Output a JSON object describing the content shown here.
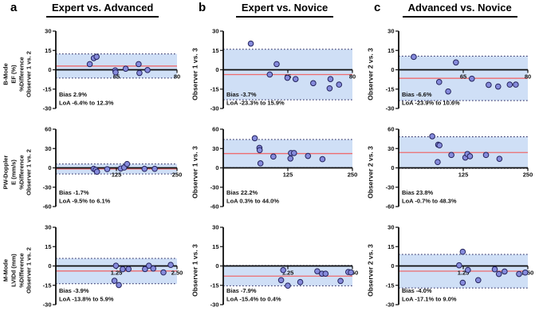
{
  "figure": {
    "columns": [
      {
        "letter": "a",
        "title": "Expert vs. Advanced"
      },
      {
        "letter": "b",
        "title": "Expert vs. Novice"
      },
      {
        "letter": "c",
        "title": "Advanced vs. Novice"
      }
    ]
  },
  "colors": {
    "band": "#cfdff6",
    "loa_line": "#23235c",
    "bias_line": "#ee6b6e",
    "point_fill": "#868bdc",
    "point_stroke": "#23235c",
    "axis": "#0d0d0d"
  },
  "chart_data": [
    {
      "id": "a1",
      "type": "scatter",
      "column_title": "Expert vs. Advanced",
      "ylabel_lines": [
        "B-Mode",
        "EF (%)",
        "%Difference",
        "Observer 1 vs. 2"
      ],
      "xlim": [
        50,
        80
      ],
      "ylim": [
        -30,
        30
      ],
      "xticks": [
        {
          "v": 65,
          "label": "65"
        },
        {
          "v": 80,
          "label": "80"
        }
      ],
      "yticks": [
        -30,
        -15,
        0,
        15,
        30
      ],
      "bias": 2.9,
      "loa": [
        -6.4,
        12.3
      ],
      "bias_label": "Bias 2.9%",
      "loa_label": "LoA -6.4% to 12.3%",
      "points": [
        [
          58.4,
          4.4
        ],
        [
          59.4,
          9.0
        ],
        [
          60.1,
          10.1
        ],
        [
          64.7,
          -0.5
        ],
        [
          64.8,
          -2.0
        ],
        [
          67.3,
          0.8
        ],
        [
          70.5,
          4.4
        ],
        [
          70.7,
          -2.5
        ],
        [
          72.7,
          -0.2
        ]
      ]
    },
    {
      "id": "a2",
      "type": "scatter",
      "column_title": "Expert vs. Advanced",
      "ylabel_lines": [
        "PW-Doppler",
        "E (mm/s)",
        "%Difference",
        "Observer 1 vs. 2"
      ],
      "xlim": [
        0,
        250
      ],
      "ylim": [
        -60,
        60
      ],
      "xticks": [
        {
          "v": 125,
          "label": "125"
        },
        {
          "v": 250,
          "label": "250"
        }
      ],
      "yticks": [
        -60,
        -30,
        0,
        30,
        60
      ],
      "bias": -1.7,
      "loa": [
        -9.5,
        6.1
      ],
      "bias_label": "Bias -1.7%",
      "loa_label": "LoA -9.5% to 6.1%",
      "points": [
        [
          78,
          -1.5
        ],
        [
          82,
          -3
        ],
        [
          85,
          -6
        ],
        [
          106,
          -2
        ],
        [
          134,
          -1
        ],
        [
          141,
          0.5
        ],
        [
          147,
          6
        ],
        [
          183,
          -1.5
        ],
        [
          204,
          -1.5
        ]
      ]
    },
    {
      "id": "a3",
      "type": "scatter",
      "column_title": "Expert vs. Advanced",
      "ylabel_lines": [
        "M-Mode",
        "LVIDd (mm)",
        "%Difference",
        "Observer 1 vs. 2"
      ],
      "xlim": [
        0,
        2.5
      ],
      "ylim": [
        -30,
        30
      ],
      "xticks": [
        {
          "v": 1.25,
          "label": "1.25"
        },
        {
          "v": 2.5,
          "label": "2.50"
        }
      ],
      "yticks": [
        -30,
        -15,
        0,
        15,
        30
      ],
      "bias": -3.9,
      "loa": [
        -13.8,
        5.9
      ],
      "bias_label": "Bias -3.9%",
      "loa_label": "LoA -13.8% to 5.9%",
      "points": [
        [
          1.21,
          -11.5
        ],
        [
          1.24,
          0.2
        ],
        [
          1.3,
          -14.8
        ],
        [
          1.38,
          -2.5
        ],
        [
          1.5,
          -2.4
        ],
        [
          1.84,
          -2.4
        ],
        [
          1.92,
          0.2
        ],
        [
          2.01,
          -2.0
        ],
        [
          2.22,
          -5.0
        ],
        [
          2.37,
          0.8
        ]
      ]
    },
    {
      "id": "b1",
      "type": "scatter",
      "column_title": "Expert vs. Novice",
      "ylabel_lines": [
        "Observer 1 vs. 3"
      ],
      "xlim": [
        50,
        80
      ],
      "ylim": [
        -30,
        30
      ],
      "xticks": [
        {
          "v": 65,
          "label": "65"
        },
        {
          "v": 80,
          "label": "80"
        }
      ],
      "yticks": [
        -30,
        -15,
        0,
        15,
        30
      ],
      "bias": -3.7,
      "loa": [
        -23.3,
        15.9
      ],
      "bias_label": "Bias -3.7%",
      "loa_label": "LoA -23.3% to 15.9%",
      "points": [
        [
          56.4,
          20.3
        ],
        [
          62.4,
          4.4
        ],
        [
          60.8,
          -3.7
        ],
        [
          64.9,
          -6.2
        ],
        [
          66.8,
          -7.2
        ],
        [
          70.9,
          -10.4
        ],
        [
          74.9,
          -7.2
        ],
        [
          74.7,
          -14.4
        ],
        [
          76.9,
          -11.5
        ]
      ]
    },
    {
      "id": "b2",
      "type": "scatter",
      "column_title": "Expert vs. Novice",
      "ylabel_lines": [
        "Observer 1 vs. 3"
      ],
      "xlim": [
        0,
        250
      ],
      "ylim": [
        -60,
        60
      ],
      "xticks": [
        {
          "v": 125,
          "label": "125"
        },
        {
          "v": 250,
          "label": "250"
        }
      ],
      "yticks": [
        -60,
        -30,
        0,
        30,
        60
      ],
      "bias": 22.2,
      "loa": [
        0.3,
        44.0
      ],
      "bias_label": "Bias 22.2%",
      "loa_label": "LoA 0.3% to 44.0%",
      "points": [
        [
          61,
          46
        ],
        [
          70,
          31
        ],
        [
          70.5,
          27.5
        ],
        [
          72,
          7
        ],
        [
          97,
          17.5
        ],
        [
          130,
          14.5
        ],
        [
          131,
          23
        ],
        [
          137,
          23
        ],
        [
          164,
          18.5
        ],
        [
          192,
          13.5
        ]
      ]
    },
    {
      "id": "b3",
      "type": "scatter",
      "column_title": "Expert vs. Novice",
      "ylabel_lines": [
        "Observer 1 vs. 3"
      ],
      "xlim": [
        0,
        2.5
      ],
      "ylim": [
        -30,
        30
      ],
      "xticks": [
        {
          "v": 1.25,
          "label": "1.25"
        },
        {
          "v": 2.5,
          "label": "2.50"
        }
      ],
      "yticks": [
        -30,
        -15,
        0,
        15,
        30
      ],
      "bias": -7.9,
      "loa": [
        -15.4,
        0.4
      ],
      "bias_label": "Bias -7.9%",
      "loa_label": "LoA -15.4% to 0.4%",
      "points": [
        [
          1.12,
          -11
        ],
        [
          1.16,
          -3.2
        ],
        [
          1.25,
          -15.3
        ],
        [
          1.49,
          -12.5
        ],
        [
          1.82,
          -4.1
        ],
        [
          1.91,
          -6.0
        ],
        [
          1.98,
          -6.0
        ],
        [
          2.27,
          -11.6
        ],
        [
          2.42,
          -4.7
        ],
        [
          2.47,
          -5.0
        ]
      ]
    },
    {
      "id": "c1",
      "type": "scatter",
      "column_title": "Advanced vs. Novice",
      "ylabel_lines": [
        "Observer 2 vs. 3"
      ],
      "xlim": [
        50,
        80
      ],
      "ylim": [
        -30,
        30
      ],
      "xticks": [
        {
          "v": 65,
          "label": "65"
        },
        {
          "v": 80,
          "label": "80"
        }
      ],
      "yticks": [
        -30,
        -15,
        0,
        15,
        30
      ],
      "bias": -6.6,
      "loa": [
        -23.9,
        10.6
      ],
      "bias_label": "Bias -6.6%",
      "loa_label": "LoA -23.9% to 10.6%",
      "points": [
        [
          53.5,
          10
        ],
        [
          63.3,
          5.7
        ],
        [
          59.4,
          -9.5
        ],
        [
          61.5,
          -16.8
        ],
        [
          67.0,
          -6.9
        ],
        [
          70.9,
          -11.7
        ],
        [
          73.1,
          -13.0
        ],
        [
          75.8,
          -11.5
        ],
        [
          77.2,
          -11.5
        ]
      ]
    },
    {
      "id": "c2",
      "type": "scatter",
      "column_title": "Advanced vs. Novice",
      "ylabel_lines": [
        "Observer 2 vs. 3"
      ],
      "xlim": [
        0,
        250
      ],
      "ylim": [
        -60,
        60
      ],
      "xticks": [
        {
          "v": 125,
          "label": "125"
        },
        {
          "v": 250,
          "label": "250"
        }
      ],
      "yticks": [
        -60,
        -30,
        0,
        30,
        60
      ],
      "bias": 23.8,
      "loa": [
        -0.7,
        48.3
      ],
      "bias_label": "Bias 23.8%",
      "loa_label": "LoA -0.7% to 48.3%",
      "points": [
        [
          65,
          49
        ],
        [
          76.5,
          36
        ],
        [
          79,
          35
        ],
        [
          75.5,
          9
        ],
        [
          102,
          20
        ],
        [
          129,
          16
        ],
        [
          133,
          21.5
        ],
        [
          138,
          18
        ],
        [
          169,
          20
        ],
        [
          195,
          14
        ]
      ]
    },
    {
      "id": "c3",
      "type": "scatter",
      "column_title": "Advanced vs. Novice",
      "ylabel_lines": [
        "Observer 2 vs. 3"
      ],
      "xlim": [
        0,
        2.5
      ],
      "ylim": [
        -30,
        30
      ],
      "xticks": [
        {
          "v": 1.25,
          "label": "1.25"
        },
        {
          "v": 2.5,
          "label": "2.50"
        }
      ],
      "yticks": [
        -30,
        -15,
        0,
        15,
        30
      ],
      "bias": -4.0,
      "loa": [
        -17.1,
        9.0
      ],
      "bias_label": "Bias -4.0%",
      "loa_label": "LoA -17.1% to 9.0%",
      "points": [
        [
          1.17,
          0.5
        ],
        [
          1.24,
          11
        ],
        [
          1.24,
          -13
        ],
        [
          1.34,
          -3.1
        ],
        [
          1.54,
          -11
        ],
        [
          1.86,
          -2.6
        ],
        [
          1.94,
          -6.2
        ],
        [
          2.05,
          -4.3
        ],
        [
          2.33,
          -6.2
        ],
        [
          2.45,
          -5.1
        ]
      ]
    }
  ]
}
